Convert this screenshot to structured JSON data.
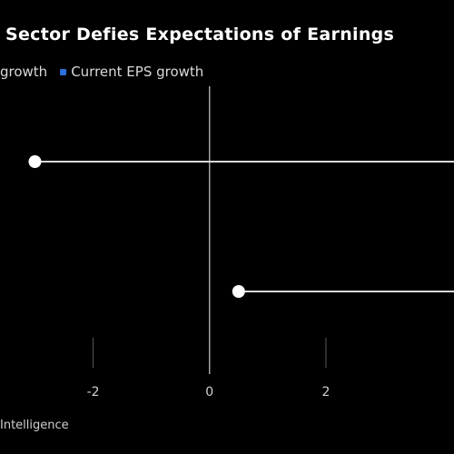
{
  "chart_data": {
    "type": "scatter",
    "title": "Sector Defies Expectations of Earnings",
    "xlabel": "",
    "ylabel": "",
    "xlim": [
      -3.6,
      4.2
    ],
    "x_ticks": [
      {
        "value": -2,
        "label": "-2"
      },
      {
        "value": 0,
        "label": "0"
      },
      {
        "value": 2,
        "label": "2"
      }
    ],
    "grid": false,
    "legend_position": "top-left",
    "legend": [
      {
        "label": "growth",
        "color": "#ffffff"
      },
      {
        "label": "Current EPS growth",
        "color": "#2f6fdc"
      }
    ],
    "rows": [
      {
        "current_eps_growth": -3.0
      },
      {
        "current_eps_growth": 0.5
      }
    ],
    "colors": {
      "background": "#000000",
      "line": "#d9d9d9",
      "dot": "#ffffff",
      "zero_line": "#bdbdbd",
      "accent": "#2f6fdc"
    }
  },
  "source_text": "Intelligence"
}
